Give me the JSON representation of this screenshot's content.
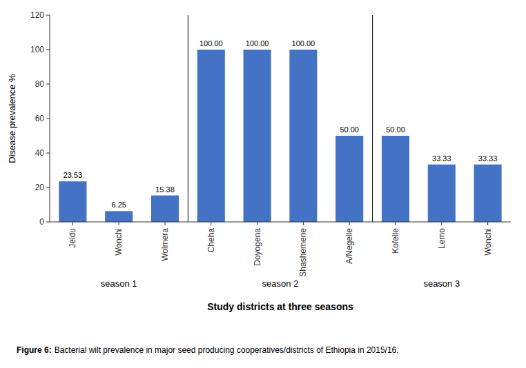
{
  "chart_data": {
    "type": "bar",
    "categories": [
      "Jeldu",
      "Wonchi",
      "Wolmera",
      "Cheha",
      "Doyogena",
      "Shashemene",
      "A/Negelle",
      "Kofelle",
      "Lemo",
      "Wonchi"
    ],
    "values": [
      23.53,
      6.25,
      15.38,
      100.0,
      100.0,
      100.0,
      50.0,
      50.0,
      33.33,
      33.33
    ],
    "value_labels": [
      "23.53",
      "6.25",
      "15.38",
      "100.00",
      "100.00",
      "100.00",
      "50.00",
      "50.00",
      "33.33",
      "33.33"
    ],
    "data_labels": true,
    "color": "#4472C4",
    "y_label": "Disease prevalence %",
    "x_label": "Study districts at three seasons",
    "ylim": [
      0,
      120
    ],
    "yticks": [
      0,
      20,
      40,
      60,
      80,
      100,
      120
    ],
    "grid": false,
    "groups": [
      {
        "label": "season 1",
        "start": 0,
        "end": 2
      },
      {
        "label": "season 2",
        "start": 3,
        "end": 6
      },
      {
        "label": "season 3",
        "start": 7,
        "end": 9
      }
    ],
    "caption": {
      "label": "Figure 6:",
      "text": "Bacterial wilt prevalence in major seed producing cooperatives/districts of Ethiopia in 2015/16."
    }
  }
}
